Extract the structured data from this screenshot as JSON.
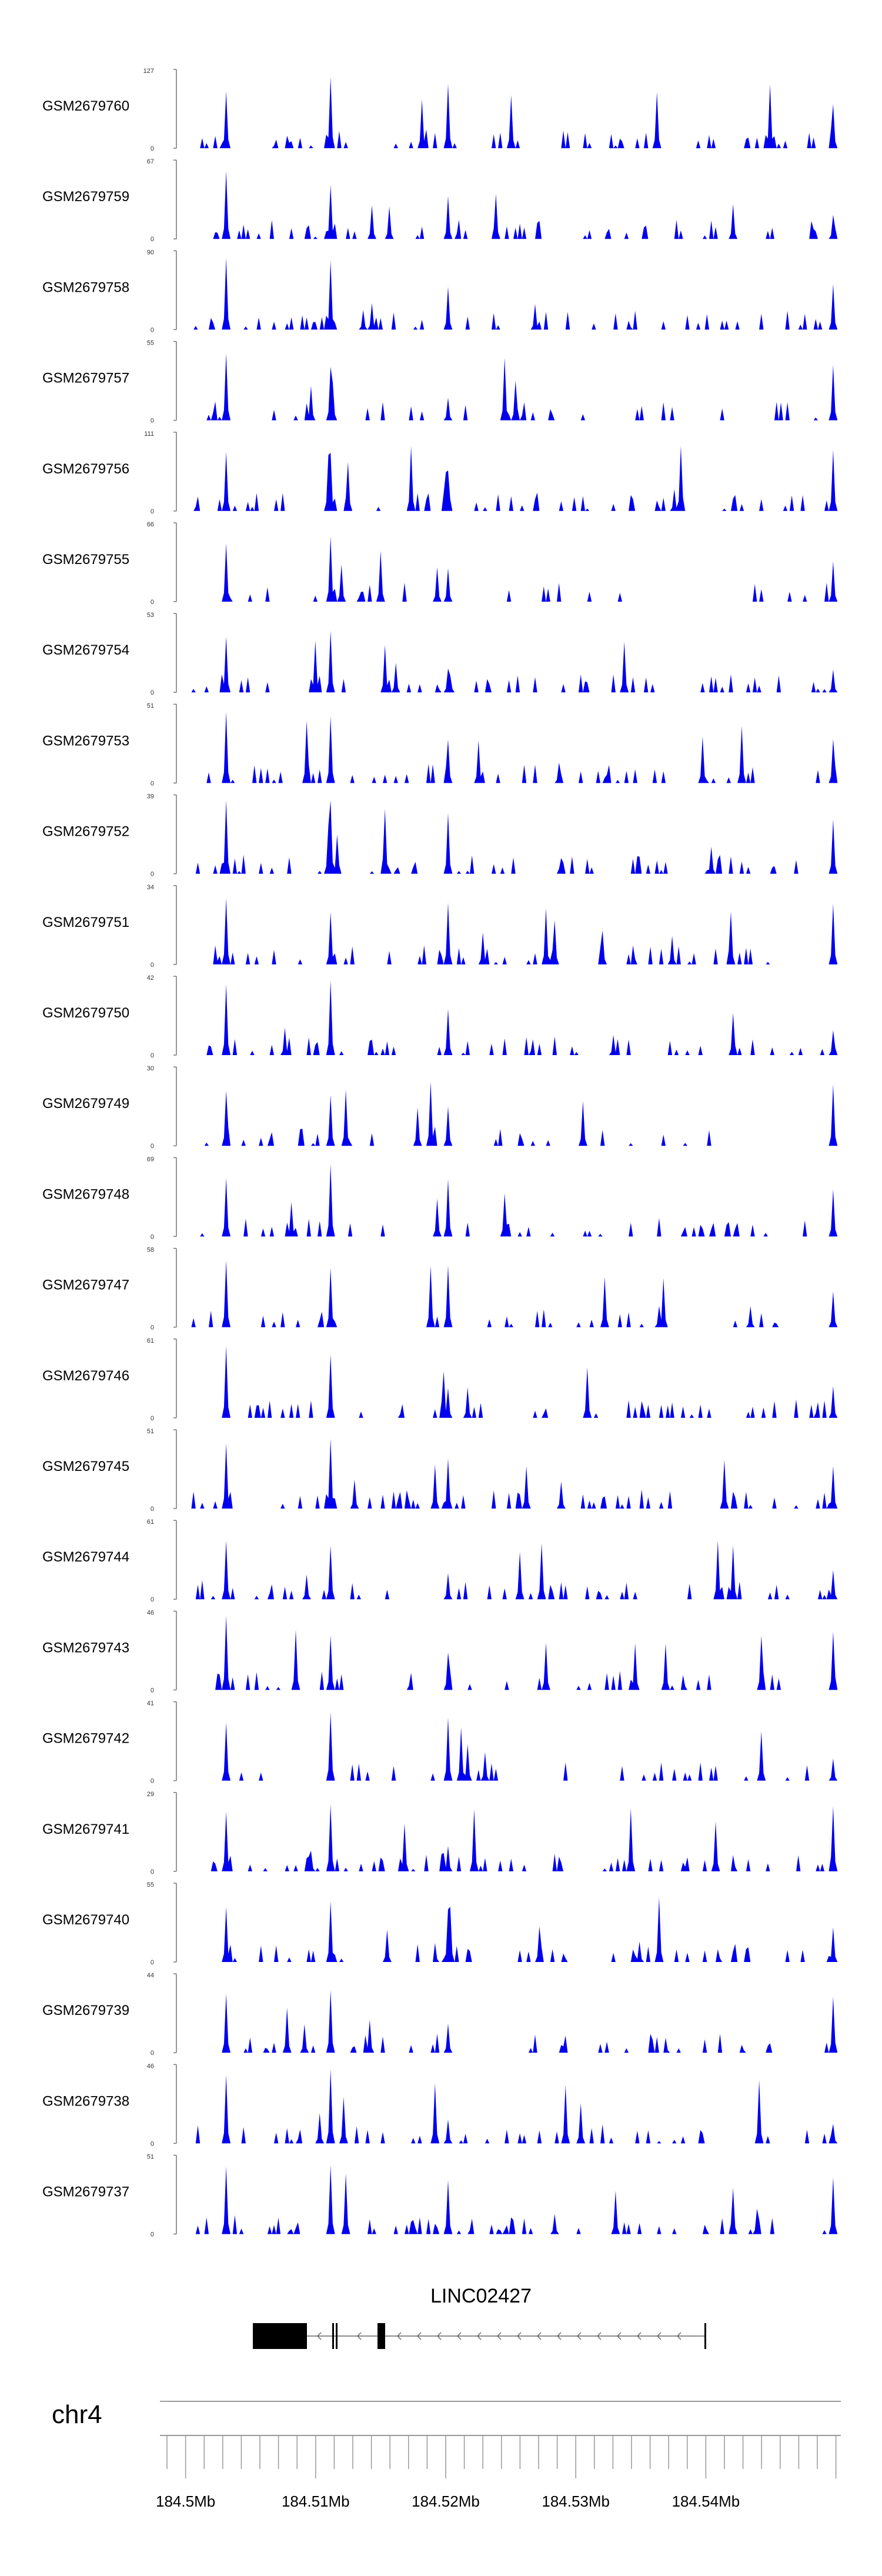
{
  "chart_data": {
    "type": "area",
    "colors": {
      "fill": "#0000ee",
      "axis": "#777777",
      "gene": "#000000"
    },
    "gene_name": "LINC02427",
    "chromosome": "chr4",
    "x_ticks": [
      "184.5Mb",
      "184.51Mb",
      "184.52Mb",
      "184.53Mb",
      "184.54Mb"
    ],
    "tracks": [
      {
        "name": "GSM2679760",
        "ymax": "127",
        "ymin": "0"
      },
      {
        "name": "GSM2679759",
        "ymax": "67",
        "ymin": "0"
      },
      {
        "name": "GSM2679758",
        "ymax": "90",
        "ymin": "0"
      },
      {
        "name": "GSM2679757",
        "ymax": "55",
        "ymin": "0"
      },
      {
        "name": "GSM2679756",
        "ymax": "111",
        "ymin": "0"
      },
      {
        "name": "GSM2679755",
        "ymax": "66",
        "ymin": "0"
      },
      {
        "name": "GSM2679754",
        "ymax": "53",
        "ymin": "0"
      },
      {
        "name": "GSM2679753",
        "ymax": "51",
        "ymin": "0"
      },
      {
        "name": "GSM2679752",
        "ymax": "39",
        "ymin": "0"
      },
      {
        "name": "GSM2679751",
        "ymax": "34",
        "ymin": "0"
      },
      {
        "name": "GSM2679750",
        "ymax": "42",
        "ymin": "0"
      },
      {
        "name": "GSM2679749",
        "ymax": "30",
        "ymin": "0"
      },
      {
        "name": "GSM2679748",
        "ymax": "69",
        "ymin": "0"
      },
      {
        "name": "GSM2679747",
        "ymax": "58",
        "ymin": "0"
      },
      {
        "name": "GSM2679746",
        "ymax": "61",
        "ymin": "0"
      },
      {
        "name": "GSM2679745",
        "ymax": "51",
        "ymin": "0"
      },
      {
        "name": "GSM2679744",
        "ymax": "61",
        "ymin": "0"
      },
      {
        "name": "GSM2679743",
        "ymax": "46",
        "ymin": "0"
      },
      {
        "name": "GSM2679742",
        "ymax": "41",
        "ymin": "0"
      },
      {
        "name": "GSM2679741",
        "ymax": "29",
        "ymin": "0"
      },
      {
        "name": "GSM2679740",
        "ymax": "55",
        "ymin": "0"
      },
      {
        "name": "GSM2679739",
        "ymax": "44",
        "ymin": "0"
      },
      {
        "name": "GSM2679738",
        "ymax": "46",
        "ymin": "0"
      },
      {
        "name": "GSM2679737",
        "ymax": "51",
        "ymin": "0"
      }
    ]
  }
}
